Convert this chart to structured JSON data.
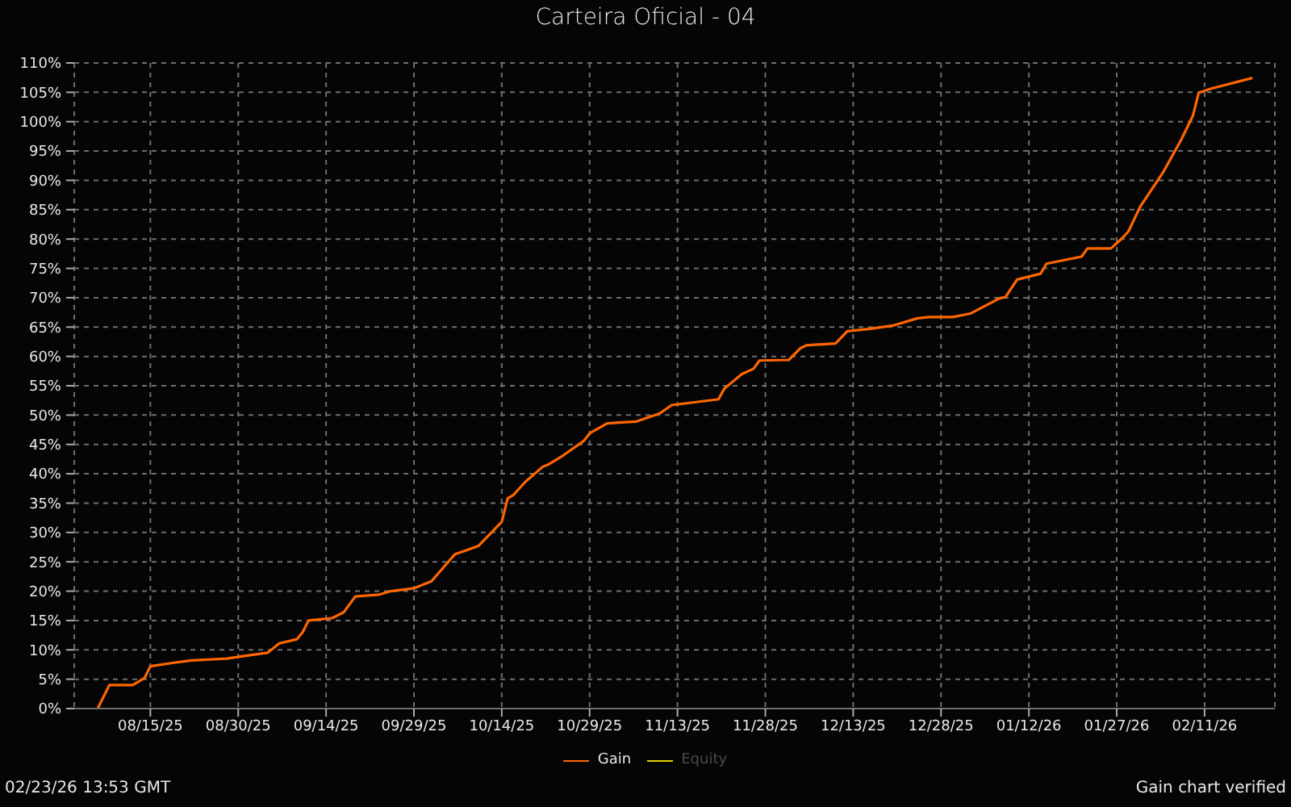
{
  "chart_data": {
    "type": "line",
    "title": "Carteira Oficial - 04",
    "x": [
      "2025-08-06",
      "2025-08-08",
      "2025-08-12",
      "2025-08-14",
      "2025-08-15",
      "2025-08-19",
      "2025-08-22",
      "2025-08-28",
      "2025-09-01",
      "2025-09-04",
      "2025-09-06",
      "2025-09-09",
      "2025-09-10",
      "2025-09-11",
      "2025-09-15",
      "2025-09-17",
      "2025-09-19",
      "2025-09-23",
      "2025-09-25",
      "2025-09-29",
      "2025-10-02",
      "2025-10-06",
      "2025-10-08",
      "2025-10-10",
      "2025-10-14",
      "2025-10-15",
      "2025-10-16",
      "2025-10-18",
      "2025-10-21",
      "2025-10-22",
      "2025-10-24",
      "2025-10-28",
      "2025-10-29",
      "2025-11-01",
      "2025-11-06",
      "2025-11-10",
      "2025-11-12",
      "2025-11-20",
      "2025-11-21",
      "2025-11-24",
      "2025-11-26",
      "2025-11-27",
      "2025-12-02",
      "2025-12-04",
      "2025-12-05",
      "2025-12-10",
      "2025-12-12",
      "2025-12-16",
      "2025-12-20",
      "2025-12-24",
      "2025-12-26",
      "2025-12-30",
      "2026-01-02",
      "2026-01-07",
      "2026-01-08",
      "2026-01-10",
      "2026-01-14",
      "2026-01-15",
      "2026-01-21",
      "2026-01-22",
      "2026-01-26",
      "2026-01-28",
      "2026-01-29",
      "2026-01-31",
      "2026-02-04",
      "2026-02-07",
      "2026-02-09",
      "2026-02-10",
      "2026-02-12",
      "2026-02-19"
    ],
    "series": [
      {
        "name": "Gain",
        "color": "#ff6600",
        "values": [
          0,
          4.0,
          4.0,
          5.2,
          7.2,
          7.8,
          8.2,
          8.5,
          9.1,
          9.5,
          11.1,
          11.8,
          13.0,
          15.0,
          15.4,
          16.4,
          19.1,
          19.4,
          20.0,
          20.5,
          21.7,
          26.3,
          27.0,
          27.7,
          31.8,
          35.8,
          36.4,
          38.6,
          41.2,
          41.6,
          42.8,
          45.6,
          46.9,
          48.6,
          48.9,
          50.3,
          51.7,
          52.7,
          54.5,
          57.0,
          57.9,
          59.3,
          59.4,
          61.4,
          61.9,
          62.2,
          64.3,
          64.7,
          65.3,
          66.5,
          66.7,
          66.7,
          67.3,
          69.9,
          70.1,
          73.1,
          74.1,
          75.8,
          77.0,
          78.4,
          78.4,
          80.2,
          81.3,
          85.5,
          91.5,
          96.9,
          101.0,
          104.9,
          105.6,
          107.4
        ]
      },
      {
        "name": "Equity",
        "color": "#e0d000",
        "values": [
          null,
          null,
          null,
          null,
          null,
          null,
          null,
          null,
          null,
          null,
          null,
          null,
          null,
          null,
          null,
          null,
          null,
          null,
          null,
          null,
          null,
          null,
          null,
          null,
          null,
          null,
          null,
          null,
          null,
          null,
          null,
          null,
          null,
          null,
          null,
          null,
          null,
          null,
          null,
          null,
          null,
          null,
          null,
          null,
          null,
          null,
          null,
          null,
          null,
          null,
          null,
          null,
          null,
          null,
          null,
          null,
          null,
          null,
          null,
          null,
          null,
          null,
          null,
          null,
          null,
          null,
          null,
          null,
          null,
          null
        ]
      }
    ],
    "xlim": [
      "2025-08-02",
      "2026-02-23"
    ],
    "xticks": [
      {
        "value": "2025-08-15",
        "label": "08/15/25"
      },
      {
        "value": "2025-08-30",
        "label": "08/30/25"
      },
      {
        "value": "2025-09-14",
        "label": "09/14/25"
      },
      {
        "value": "2025-09-29",
        "label": "09/29/25"
      },
      {
        "value": "2025-10-14",
        "label": "10/14/25"
      },
      {
        "value": "2025-10-29",
        "label": "10/29/25"
      },
      {
        "value": "2025-11-13",
        "label": "11/13/25"
      },
      {
        "value": "2025-11-28",
        "label": "11/28/25"
      },
      {
        "value": "2025-12-13",
        "label": "12/13/25"
      },
      {
        "value": "2025-12-28",
        "label": "12/28/25"
      },
      {
        "value": "2026-01-12",
        "label": "01/12/26"
      },
      {
        "value": "2026-01-27",
        "label": "01/27/26"
      },
      {
        "value": "2026-02-11",
        "label": "02/11/26"
      }
    ],
    "ylim": [
      0,
      110
    ],
    "yticks": [
      {
        "value": 0,
        "label": "0%"
      },
      {
        "value": 5,
        "label": "5%"
      },
      {
        "value": 10,
        "label": "10%"
      },
      {
        "value": 15,
        "label": "15%"
      },
      {
        "value": 20,
        "label": "20%"
      },
      {
        "value": 25,
        "label": "25%"
      },
      {
        "value": 30,
        "label": "30%"
      },
      {
        "value": 35,
        "label": "35%"
      },
      {
        "value": 40,
        "label": "40%"
      },
      {
        "value": 45,
        "label": "45%"
      },
      {
        "value": 50,
        "label": "50%"
      },
      {
        "value": 55,
        "label": "55%"
      },
      {
        "value": 60,
        "label": "60%"
      },
      {
        "value": 65,
        "label": "65%"
      },
      {
        "value": 70,
        "label": "70%"
      },
      {
        "value": 75,
        "label": "75%"
      },
      {
        "value": 80,
        "label": "80%"
      },
      {
        "value": 85,
        "label": "85%"
      },
      {
        "value": 90,
        "label": "90%"
      },
      {
        "value": 95,
        "label": "95%"
      },
      {
        "value": 100,
        "label": "100%"
      },
      {
        "value": 105,
        "label": "105%"
      },
      {
        "value": 110,
        "label": "110%"
      }
    ],
    "grid": true,
    "legend": "bottom",
    "marker": "none",
    "annotations": [
      "02/23/26 13:53 GMT",
      "Gain chart verified"
    ]
  }
}
